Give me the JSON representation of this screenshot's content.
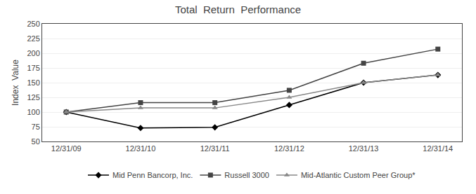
{
  "chart_data": {
    "type": "line",
    "title": "Total  Return  Performance",
    "ylabel": "Index  Value",
    "categories": [
      "12/31/09",
      "12/31/10",
      "12/31/11",
      "12/31/12",
      "12/31/13",
      "12/31/14"
    ],
    "series": [
      {
        "name": "Mid Penn Bancorp, Inc.",
        "color": "#000000",
        "marker": "diamond",
        "line_style": "solid",
        "values": [
          100,
          73,
          74,
          112,
          150,
          163
        ]
      },
      {
        "name": "Russell 3000",
        "color": "#444444",
        "marker": "square",
        "line_style": "solid",
        "values": [
          100,
          116,
          116,
          137,
          183,
          207
        ]
      },
      {
        "name": "Mid-Atlantic Custom Peer Group*",
        "color": "#888888",
        "marker": "triangle-up",
        "line_style": "solid",
        "values": [
          100,
          107,
          107,
          125,
          150,
          163
        ]
      }
    ],
    "ylim": [
      50,
      250
    ],
    "yticks": [
      50,
      75,
      100,
      125,
      150,
      175,
      200,
      225,
      250
    ],
    "grid": true,
    "legend": "bottom"
  }
}
